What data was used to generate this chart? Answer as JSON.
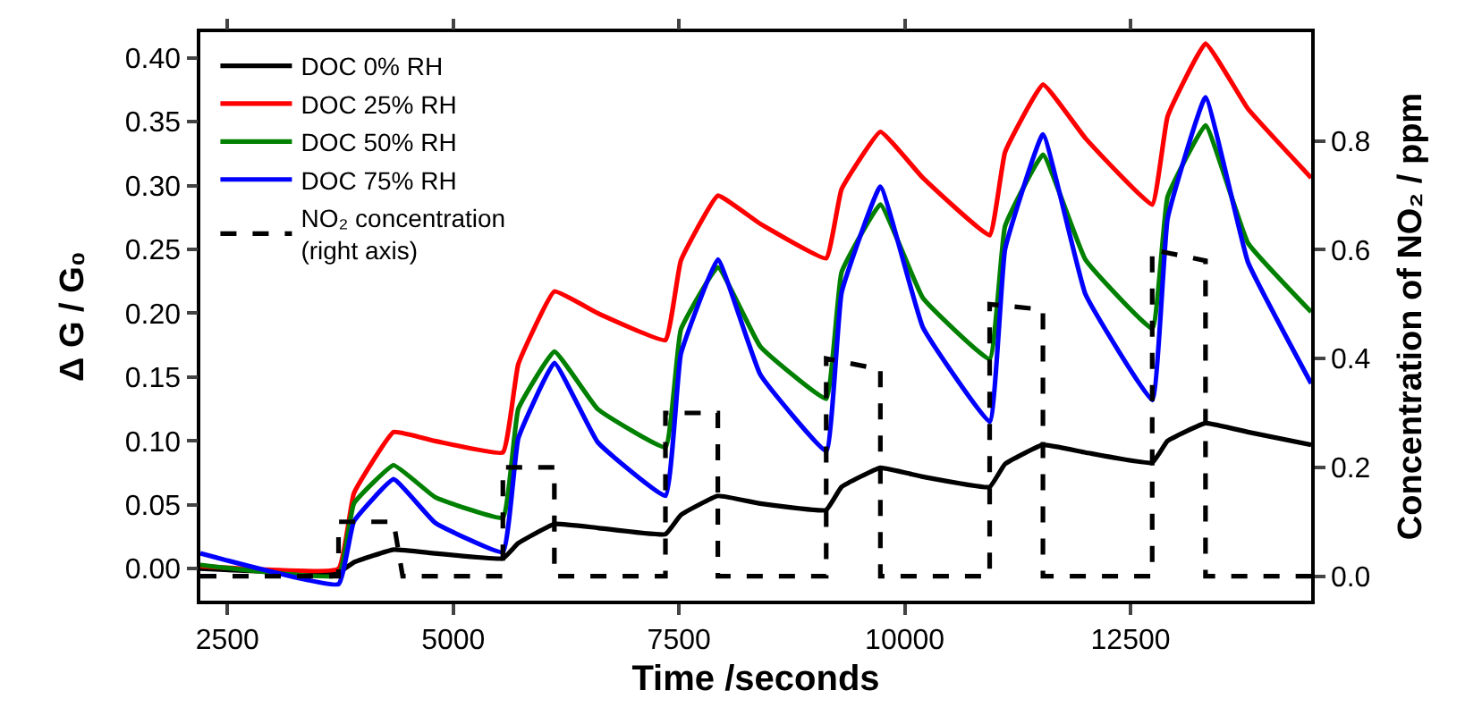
{
  "chart_data": {
    "type": "line",
    "xlabel": "Time /seconds",
    "ylabel": "Δ G / G₀",
    "y2label": "Concentration of NO₂ / ppm",
    "x": [
      2200,
      3730,
      3900,
      4340,
      4800,
      5550,
      5720,
      6120,
      6600,
      7350,
      7520,
      7930,
      8400,
      9130,
      9300,
      9730,
      10200,
      10940,
      11110,
      11530,
      12000,
      12740,
      12910,
      13330,
      13800,
      14500
    ],
    "series": [
      {
        "name": "DOC 0% RH",
        "color": "#000000",
        "values": [
          0.0,
          -0.003,
          0.005,
          0.015,
          0.012,
          0.008,
          0.02,
          0.035,
          0.032,
          0.027,
          0.042,
          0.057,
          0.051,
          0.046,
          0.064,
          0.079,
          0.072,
          0.064,
          0.082,
          0.097,
          0.091,
          0.083,
          0.1,
          0.114,
          0.107,
          0.097
        ]
      },
      {
        "name": "DOC 25% RH",
        "color": "#ff0000",
        "values": [
          0.002,
          0.0,
          0.059,
          0.107,
          0.1,
          0.091,
          0.16,
          0.217,
          0.2,
          0.179,
          0.241,
          0.292,
          0.27,
          0.243,
          0.297,
          0.342,
          0.306,
          0.261,
          0.326,
          0.379,
          0.337,
          0.285,
          0.354,
          0.411,
          0.36,
          0.306
        ]
      },
      {
        "name": "DOC 50% RH",
        "color": "#008000",
        "values": [
          0.003,
          -0.005,
          0.051,
          0.081,
          0.056,
          0.04,
          0.125,
          0.17,
          0.125,
          0.095,
          0.187,
          0.236,
          0.174,
          0.133,
          0.232,
          0.285,
          0.212,
          0.164,
          0.268,
          0.324,
          0.242,
          0.188,
          0.291,
          0.347,
          0.255,
          0.201
        ]
      },
      {
        "name": "DOC 75% RH",
        "color": "#0000ff",
        "values": [
          0.012,
          -0.012,
          0.037,
          0.07,
          0.036,
          0.013,
          0.102,
          0.161,
          0.099,
          0.057,
          0.168,
          0.242,
          0.152,
          0.092,
          0.216,
          0.299,
          0.189,
          0.115,
          0.25,
          0.34,
          0.215,
          0.132,
          0.274,
          0.369,
          0.24,
          0.145
        ]
      },
      {
        "name": "NO₂ concentration\n(right axis)",
        "color": "#000000",
        "axis": "y2",
        "line_style": "dashed",
        "x": [
          2200,
          3730,
          3730,
          4340,
          4440,
          5450,
          5550,
          5550,
          6120,
          6120,
          7350,
          7350,
          7930,
          7930,
          9050,
          9130,
          9130,
          9730,
          9730,
          10940,
          10940,
          11530,
          11530,
          12740,
          12740,
          13330,
          13330,
          14500
        ],
        "values": [
          0,
          0,
          0.1,
          0.1,
          0,
          0,
          0,
          0.2,
          0.2,
          0,
          0,
          0.3,
          0.3,
          0,
          0,
          0,
          0.4,
          0.38,
          0,
          0,
          0.5,
          0.49,
          0,
          0,
          0.6,
          0.58,
          0,
          0
        ]
      }
    ],
    "xlim": [
      2200,
      14500
    ],
    "xticks": [
      2500,
      5000,
      7500,
      10000,
      12500
    ],
    "ylim": [
      -0.025,
      0.42
    ],
    "yticks": [
      {
        "value": 0,
        "label": "0.00"
      },
      {
        "value": 0.05,
        "label": "0.05"
      },
      {
        "value": 0.1,
        "label": "0.10"
      },
      {
        "value": 0.15,
        "label": "0.15"
      },
      {
        "value": 0.2,
        "label": "0.20"
      },
      {
        "value": 0.25,
        "label": "0.25"
      },
      {
        "value": 0.3,
        "label": "0.30"
      },
      {
        "value": 0.35,
        "label": "0.35"
      },
      {
        "value": 0.4,
        "label": "0.40"
      }
    ],
    "y2lim": [
      -0.045,
      1.0
    ],
    "y2ticks": [
      {
        "value": 0,
        "label": "0.0"
      },
      {
        "value": 0.2,
        "label": "0.2"
      },
      {
        "value": 0.4,
        "label": "0.4"
      },
      {
        "value": 0.6,
        "label": "0.6"
      },
      {
        "value": 0.8,
        "label": "0.8"
      }
    ],
    "legend": "top left",
    "line_style": "solid",
    "marker": "none"
  }
}
